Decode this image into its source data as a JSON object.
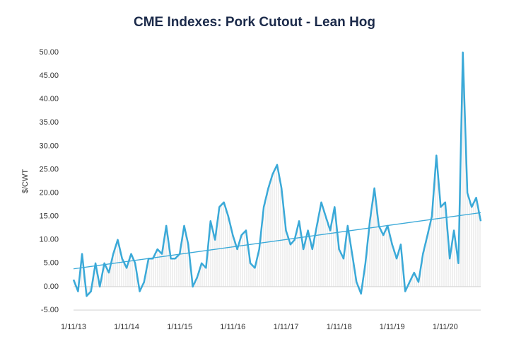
{
  "chart_data": {
    "type": "line",
    "title": "CME Indexes: Pork Cutout - Lean Hog",
    "y_label": "$/CWT",
    "x": [
      "1/11/13",
      "2/11/13",
      "3/11/13",
      "4/11/13",
      "5/11/13",
      "6/11/13",
      "7/11/13",
      "8/11/13",
      "9/11/13",
      "10/11/13",
      "11/11/13",
      "12/11/13",
      "1/11/14",
      "2/11/14",
      "3/11/14",
      "4/11/14",
      "5/11/14",
      "6/11/14",
      "7/11/14",
      "8/11/14",
      "9/11/14",
      "10/11/14",
      "11/11/14",
      "12/11/14",
      "1/11/15",
      "2/11/15",
      "3/11/15",
      "4/11/15",
      "5/11/15",
      "6/11/15",
      "7/11/15",
      "8/11/15",
      "9/11/15",
      "10/11/15",
      "11/11/15",
      "12/11/15",
      "1/11/16",
      "2/11/16",
      "3/11/16",
      "4/11/16",
      "5/11/16",
      "6/11/16",
      "7/11/16",
      "8/11/16",
      "9/11/16",
      "10/11/16",
      "11/11/16",
      "12/11/16",
      "1/11/17",
      "2/11/17",
      "3/11/17",
      "4/11/17",
      "5/11/17",
      "6/11/17",
      "7/11/17",
      "8/11/17",
      "9/11/17",
      "10/11/17",
      "11/11/17",
      "12/11/17",
      "1/11/18",
      "2/11/18",
      "3/11/18",
      "4/11/18",
      "5/11/18",
      "6/11/18",
      "7/11/18",
      "8/11/18",
      "9/11/18",
      "10/11/18",
      "11/11/18",
      "12/11/18",
      "1/11/19",
      "2/11/19",
      "3/11/19",
      "4/11/19",
      "5/11/19",
      "6/11/19",
      "7/11/19",
      "8/11/19",
      "9/11/19",
      "10/11/19",
      "11/11/19",
      "12/11/19",
      "1/11/20",
      "2/11/20",
      "3/11/20",
      "4/11/20",
      "5/11/20",
      "6/11/20",
      "7/11/20",
      "8/11/20",
      "9/11/20"
    ],
    "series": [
      {
        "color": "#3aa9d8",
        "values": [
          1.5,
          -1,
          7,
          -2,
          -1,
          5,
          0,
          5,
          3,
          7,
          10,
          6,
          4,
          7,
          5,
          -1,
          1,
          6,
          6,
          8,
          7,
          13,
          6,
          6,
          7,
          13,
          9,
          0,
          2,
          5,
          4,
          14,
          10,
          17,
          18,
          15,
          11,
          8,
          11,
          12,
          5,
          4,
          8,
          17,
          21,
          24,
          26,
          21,
          12,
          9,
          10,
          14,
          8,
          12,
          8,
          13,
          18,
          15,
          12,
          17,
          8,
          6,
          13,
          7,
          1,
          -1.5,
          5,
          14,
          21,
          13,
          11,
          13,
          9,
          6,
          9,
          -1,
          1,
          3,
          1,
          7,
          11,
          15,
          28,
          17,
          18,
          6,
          12,
          5,
          50,
          20,
          17,
          19,
          14
        ]
      }
    ],
    "trend": {
      "color": "#3aa9d8",
      "x": [
        "1/11/13",
        "9/11/20"
      ],
      "values": [
        3.8,
        15.8
      ]
    },
    "xlim": [
      "1/11/13",
      "9/11/20"
    ],
    "xticks": [
      "1/11/13",
      "1/11/14",
      "1/11/15",
      "1/11/16",
      "1/11/17",
      "1/11/18",
      "1/11/19",
      "1/11/20"
    ],
    "ylim": [
      -5,
      50
    ],
    "yticks": [
      {
        "value": -5,
        "label": "-5.00"
      },
      {
        "value": 0,
        "label": "0.00"
      },
      {
        "value": 5,
        "label": "5.00"
      },
      {
        "value": 10,
        "label": "10.00"
      },
      {
        "value": 15,
        "label": "15.00"
      },
      {
        "value": 20,
        "label": "20.00"
      },
      {
        "value": 25,
        "label": "25.00"
      },
      {
        "value": 30,
        "label": "30.00"
      },
      {
        "value": 35,
        "label": "35.00"
      },
      {
        "value": 40,
        "label": "40.00"
      },
      {
        "value": 45,
        "label": "45.00"
      },
      {
        "value": 50,
        "label": "50.00"
      }
    ]
  }
}
